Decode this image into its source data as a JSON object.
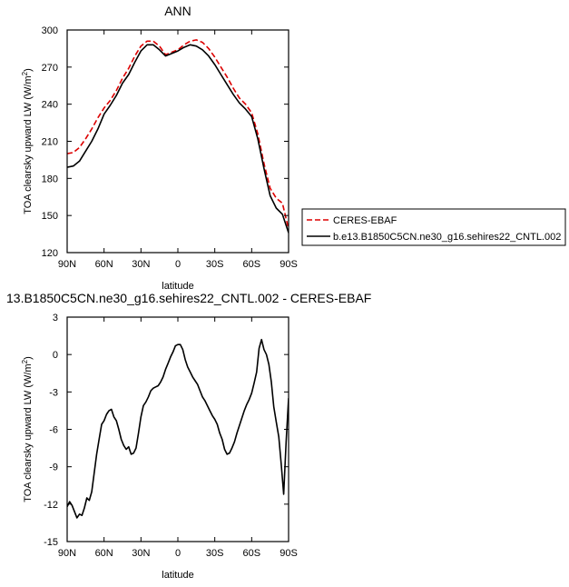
{
  "chart_data": [
    {
      "type": "line",
      "title": "ANN",
      "xlabel": "latitude",
      "ylabel": "TOA clearsky upward LW (W/m",
      "ylabel_sup": "2",
      "ylabel_close": ")",
      "xlim": [
        90,
        -90
      ],
      "ylim": [
        120,
        300
      ],
      "x_tick_values": [
        90,
        60,
        30,
        0,
        -30,
        -60,
        -90
      ],
      "x_tick_labels": [
        "90N",
        "60N",
        "30N",
        "0",
        "30S",
        "60S",
        "90S"
      ],
      "y_tick_values": [
        120,
        150,
        180,
        210,
        240,
        270,
        300
      ],
      "y_tick_labels": [
        "120",
        "150",
        "180",
        "210",
        "240",
        "270",
        "300"
      ],
      "legend_position": "right",
      "x": [
        90,
        85,
        80,
        75,
        70,
        65,
        60,
        55,
        50,
        45,
        40,
        35,
        30,
        25,
        20,
        15,
        10,
        5,
        0,
        -5,
        -10,
        -15,
        -20,
        -25,
        -30,
        -35,
        -40,
        -45,
        -50,
        -55,
        -60,
        -65,
        -70,
        -75,
        -80,
        -85,
        -90
      ],
      "series": [
        {
          "name": "CERES-EBAF",
          "color": "#dd0000",
          "dash": "dashed",
          "values": [
            200,
            201,
            205,
            212,
            220,
            229,
            237,
            243,
            251,
            261,
            269,
            279,
            287,
            291,
            291,
            287,
            280,
            282,
            284,
            288,
            291,
            292,
            290,
            285,
            278,
            270,
            262,
            253,
            245,
            240,
            233,
            216,
            192,
            172,
            164,
            160,
            139
          ]
        },
        {
          "name": "b.e13.B1850C5CN.ne30_g16.sehires22_CNTL.002",
          "color": "#000000",
          "dash": "solid",
          "values": [
            189,
            190,
            194,
            202,
            210,
            220,
            232,
            239,
            247,
            257,
            264,
            274,
            283,
            288,
            288,
            284,
            279,
            281,
            283,
            286,
            288,
            287,
            284,
            279,
            272,
            264,
            256,
            248,
            241,
            236,
            230,
            212,
            188,
            166,
            156,
            151,
            136
          ]
        }
      ]
    },
    {
      "type": "line",
      "title": "13.B1850C5CN.ne30_g16.sehires22_CNTL.002 - CERES-EBAF",
      "xlabel": "latitude",
      "ylabel": "TOA clearsky upward LW (W/m",
      "ylabel_sup": "2",
      "ylabel_close": ")",
      "xlim": [
        90,
        -90
      ],
      "ylim": [
        -15,
        3
      ],
      "x_tick_values": [
        90,
        60,
        30,
        0,
        -30,
        -60,
        -90
      ],
      "x_tick_labels": [
        "90N",
        "60N",
        "30N",
        "0",
        "30S",
        "60S",
        "90S"
      ],
      "y_tick_values": [
        -15,
        -12,
        -9,
        -6,
        -3,
        0,
        3
      ],
      "y_tick_labels": [
        "-15",
        "-12",
        "-9",
        "-6",
        "-3",
        "0",
        "3"
      ],
      "x": [
        90,
        88,
        86,
        84,
        82,
        80,
        78,
        76,
        74,
        72,
        70,
        68,
        66,
        64,
        62,
        60,
        58,
        56,
        54,
        52,
        50,
        48,
        46,
        44,
        42,
        40,
        38,
        36,
        34,
        32,
        30,
        28,
        26,
        24,
        22,
        20,
        18,
        16,
        14,
        12,
        10,
        8,
        6,
        4,
        2,
        0,
        -2,
        -4,
        -6,
        -8,
        -10,
        -12,
        -14,
        -16,
        -18,
        -20,
        -22,
        -24,
        -26,
        -28,
        -30,
        -32,
        -34,
        -36,
        -38,
        -40,
        -42,
        -44,
        -46,
        -48,
        -50,
        -52,
        -54,
        -56,
        -58,
        -60,
        -62,
        -64,
        -66,
        -68,
        -70,
        -72,
        -74,
        -76,
        -78,
        -80,
        -82,
        -84,
        -86,
        -88,
        -90
      ],
      "series": [
        {
          "name": "",
          "color": "#000000",
          "values": [
            -12.2,
            -11.8,
            -12.1,
            -12.6,
            -13.1,
            -12.8,
            -12.9,
            -12.3,
            -11.5,
            -11.7,
            -11.0,
            -9.5,
            -8.0,
            -6.8,
            -5.6,
            -5.3,
            -4.8,
            -4.5,
            -4.4,
            -5.0,
            -5.3,
            -6.0,
            -6.8,
            -7.3,
            -7.6,
            -7.4,
            -8.0,
            -7.9,
            -7.5,
            -6.3,
            -5.0,
            -4.1,
            -3.8,
            -3.4,
            -2.9,
            -2.7,
            -2.6,
            -2.5,
            -2.2,
            -1.8,
            -1.2,
            -0.7,
            -0.2,
            0.2,
            0.7,
            0.8,
            0.8,
            0.4,
            -0.4,
            -1.0,
            -1.4,
            -1.8,
            -2.1,
            -2.4,
            -2.9,
            -3.4,
            -3.7,
            -4.1,
            -4.5,
            -4.9,
            -5.2,
            -5.6,
            -6.3,
            -6.8,
            -7.6,
            -8.0,
            -7.9,
            -7.5,
            -7.0,
            -6.3,
            -5.7,
            -5.1,
            -4.5,
            -4.0,
            -3.6,
            -3.1,
            -2.3,
            -1.4,
            0.5,
            1.2,
            0.4,
            0.0,
            -0.8,
            -2.2,
            -4.2,
            -5.4,
            -6.6,
            -8.8,
            -11.2,
            -7.0,
            -3.5
          ]
        }
      ]
    }
  ]
}
